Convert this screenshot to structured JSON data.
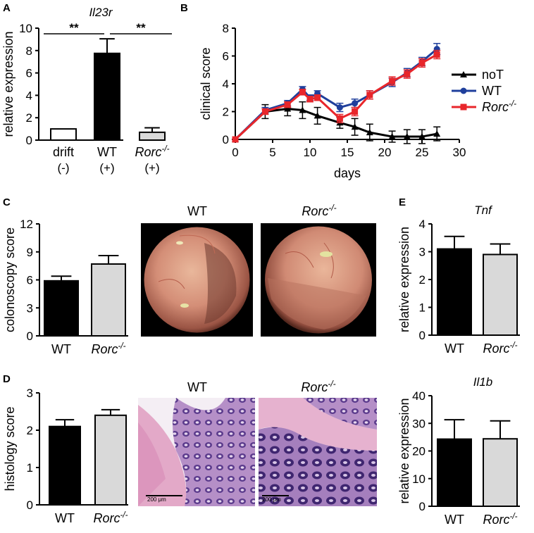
{
  "colors": {
    "black": "#000000",
    "gray": "#d9d9d9",
    "blue": "#1f3f9c",
    "red": "#e8262b",
    "white": "#ffffff"
  },
  "panel_labels": {
    "A": "A",
    "B": "B",
    "C": "C",
    "D": "D",
    "E": "E"
  },
  "chart_data": [
    {
      "id": "A",
      "type": "bar",
      "title": "Il23r",
      "ylabel": "relative expression",
      "ylim": [
        0,
        10
      ],
      "yticks": [
        0,
        2,
        4,
        6,
        8,
        10
      ],
      "categories": [
        {
          "name": "drift",
          "sub": "(-)"
        },
        {
          "name": "WT",
          "sub": "(+)"
        },
        {
          "name": "Rorc",
          "sup": "-/-",
          "sub": "(+)"
        }
      ],
      "values": [
        1.0,
        7.75,
        0.7
      ],
      "errors": [
        0,
        1.3,
        0.4
      ],
      "fills": [
        "#ffffff",
        "#000000",
        "#d9d9d9"
      ],
      "annotations": [
        {
          "text": "**",
          "from": 0,
          "to": 1
        },
        {
          "text": "**",
          "from": 1,
          "to": 2
        }
      ]
    },
    {
      "id": "B",
      "type": "line",
      "xlabel": "days",
      "ylabel": "clinical score",
      "xlim": [
        0,
        30
      ],
      "ylim": [
        0,
        8
      ],
      "xticks": [
        0,
        5,
        10,
        15,
        20,
        25,
        30
      ],
      "yticks": [
        0,
        2,
        4,
        6,
        8
      ],
      "series": [
        {
          "name": "noT",
          "marker": "triangle",
          "color": "#000000",
          "x": [
            0,
            4,
            7,
            9,
            11,
            14,
            16,
            18,
            21,
            23,
            25,
            27
          ],
          "y": [
            0,
            2.0,
            2.2,
            2.1,
            1.7,
            1.2,
            0.9,
            0.5,
            0.2,
            0.2,
            0.2,
            0.4
          ],
          "err": [
            0,
            0.5,
            0.5,
            0.6,
            0.6,
            0.4,
            0.6,
            0.6,
            0.4,
            0.5,
            0.5,
            0.5
          ]
        },
        {
          "name": "WT",
          "marker": "circle",
          "color": "#1f3f9c",
          "x": [
            0,
            4,
            7,
            9,
            10,
            11,
            14,
            16,
            18,
            21,
            23,
            25,
            27
          ],
          "y": [
            0,
            2.1,
            2.6,
            3.6,
            3.0,
            3.3,
            2.3,
            2.6,
            3.2,
            4.1,
            4.8,
            5.6,
            6.5
          ],
          "err": [
            0,
            0.2,
            0.2,
            0.2,
            0.2,
            0.2,
            0.3,
            0.3,
            0.3,
            0.3,
            0.3,
            0.3,
            0.4
          ]
        },
        {
          "name": "Rorc",
          "sup": "-/-",
          "marker": "square",
          "color": "#e8262b",
          "x": [
            0,
            4,
            7,
            9,
            10,
            11,
            14,
            16,
            18,
            21,
            23,
            25,
            27
          ],
          "y": [
            0,
            2.0,
            2.5,
            3.4,
            2.9,
            3.0,
            1.5,
            2.0,
            3.2,
            4.2,
            4.7,
            5.5,
            6.1
          ],
          "err": [
            0,
            0.2,
            0.2,
            0.2,
            0.2,
            0.2,
            0.3,
            0.3,
            0.3,
            0.3,
            0.3,
            0.3,
            0.3
          ]
        }
      ]
    },
    {
      "id": "C",
      "type": "bar",
      "ylabel": "colonoscopy score",
      "ylim": [
        0,
        12
      ],
      "yticks": [
        0,
        3,
        6,
        9,
        12
      ],
      "categories": [
        {
          "name": "WT"
        },
        {
          "name": "Rorc",
          "sup": "-/-"
        }
      ],
      "values": [
        5.9,
        7.7
      ],
      "errors": [
        0.5,
        0.9
      ],
      "fills": [
        "#000000",
        "#d9d9d9"
      ]
    },
    {
      "id": "D",
      "type": "bar",
      "ylabel": "histology score",
      "ylim": [
        0,
        3
      ],
      "yticks": [
        0,
        1,
        2,
        3
      ],
      "categories": [
        {
          "name": "WT"
        },
        {
          "name": "Rorc",
          "sup": "-/-"
        }
      ],
      "values": [
        2.1,
        2.4
      ],
      "errors": [
        0.18,
        0.15
      ],
      "fills": [
        "#000000",
        "#d9d9d9"
      ]
    },
    {
      "id": "E1",
      "type": "bar",
      "title": "Tnf",
      "ylabel": "relative expression",
      "ylim": [
        0,
        4
      ],
      "yticks": [
        0,
        1,
        2,
        3,
        4
      ],
      "categories": [
        {
          "name": "WT"
        },
        {
          "name": "Rorc",
          "sup": "-/-"
        }
      ],
      "values": [
        3.1,
        2.9
      ],
      "errors": [
        0.45,
        0.38
      ],
      "fills": [
        "#000000",
        "#d9d9d9"
      ]
    },
    {
      "id": "E2",
      "type": "bar",
      "title": "Il1b",
      "ylabel": "relative expression",
      "ylim": [
        0,
        40
      ],
      "yticks": [
        0,
        10,
        20,
        30,
        40
      ],
      "categories": [
        {
          "name": "WT"
        },
        {
          "name": "Rorc",
          "sup": "-/-"
        }
      ],
      "values": [
        24.3,
        24.4
      ],
      "errors": [
        7.0,
        6.5
      ],
      "fills": [
        "#000000",
        "#d9d9d9"
      ]
    }
  ],
  "images": {
    "colonoscopy": [
      {
        "label": "WT"
      },
      {
        "label": "Rorc",
        "sup": "-/-"
      }
    ],
    "histology": [
      {
        "label": "WT",
        "scale": "200 μm"
      },
      {
        "label": "Rorc",
        "sup": "-/-",
        "scale": "200 μm"
      }
    ]
  }
}
